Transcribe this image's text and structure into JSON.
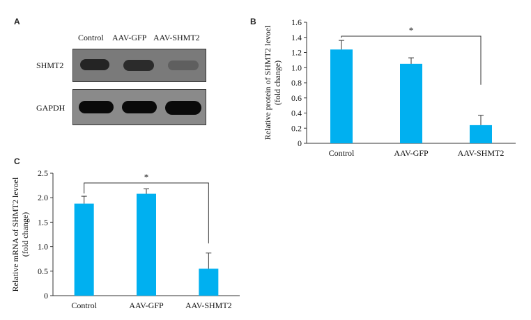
{
  "panels": {
    "a": "A",
    "b": "B",
    "c": "C"
  },
  "blot": {
    "lanes": [
      "Control",
      "AAV-GFP",
      "AAV-SHMT2"
    ],
    "rows": [
      {
        "label": "SHMT2",
        "band_intensity": [
          0.82,
          0.75,
          0.25
        ]
      },
      {
        "label": "GAPDH",
        "band_intensity": [
          1.0,
          1.0,
          1.0
        ]
      }
    ]
  },
  "colors": {
    "bar": "#00b0f0",
    "axis": "#333333",
    "blot_background": "#7a7a7a",
    "band": "#111111"
  },
  "chart_data": [
    {
      "panel": "B",
      "type": "bar",
      "categories": [
        "Control",
        "AAV-GFP",
        "AAV-SHMT2"
      ],
      "values": [
        1.24,
        1.05,
        0.24
      ],
      "errors": [
        0.12,
        0.08,
        0.13
      ],
      "ylabel": "Relative protein of SHMT2 levoel (fold change)",
      "ylabel_lines": [
        "Relative protein of SHMT2 levoel",
        "(fold change)"
      ],
      "xlabel": "",
      "ylim": [
        0,
        1.6
      ],
      "yticks": [
        "0",
        "0.2",
        "0.4",
        "0.6",
        "0.8",
        "1.0",
        "1.2",
        "1.4",
        "1.6"
      ],
      "significance": {
        "from": "Control",
        "to": "AAV-SHMT2",
        "label": "*"
      }
    },
    {
      "panel": "C",
      "type": "bar",
      "categories": [
        "Control",
        "AAV-GFP",
        "AAV-SHMT2"
      ],
      "values": [
        1.88,
        2.08,
        0.55
      ],
      "errors": [
        0.15,
        0.1,
        0.32
      ],
      "ylabel": "Relative mRNA of SHMT2 levoel (fold change)",
      "ylabel_lines": [
        "Relative mRNA of SHMT2 levoel",
        "(fold change)"
      ],
      "xlabel": "",
      "ylim": [
        0,
        2.5
      ],
      "yticks": [
        "0",
        "0.5",
        "1.0",
        "1.5",
        "2.0",
        "2.5"
      ],
      "significance": {
        "from": "Control",
        "to": "AAV-SHMT2",
        "label": "*"
      }
    }
  ]
}
